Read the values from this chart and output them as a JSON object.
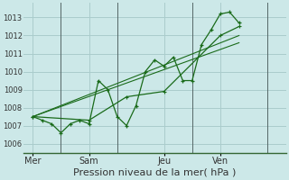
{
  "bg_color": "#cce8e8",
  "grid_color": "#aacccc",
  "line_color": "#1a6b1a",
  "marker_color": "#1a6b1a",
  "xlabel": "Pression niveau de la mer( hPa )",
  "xlabel_fontsize": 8,
  "ylim": [
    1005.5,
    1013.8
  ],
  "yticks": [
    1006,
    1007,
    1008,
    1009,
    1010,
    1011,
    1012,
    1013
  ],
  "ytick_fontsize": 6,
  "day_labels": [
    "Mer",
    "Sam",
    "Jeu",
    "Ven"
  ],
  "day_positions": [
    0.5,
    3.5,
    7.5,
    10.5
  ],
  "vline_positions": [
    2,
    5,
    9,
    13
  ],
  "vline_color": "#556666",
  "xlim": [
    0,
    14
  ],
  "series1_x": [
    0.5,
    1.0,
    1.5,
    2.0,
    2.5,
    3.0,
    3.5,
    4.0,
    4.5,
    5.0,
    5.5,
    6.0,
    6.5,
    7.0,
    7.5,
    8.0,
    8.5,
    9.0,
    9.5,
    10.0,
    10.5,
    11.0,
    11.5
  ],
  "series1_y": [
    1007.5,
    1007.3,
    1007.1,
    1006.6,
    1007.1,
    1007.3,
    1007.1,
    1009.5,
    1009.0,
    1007.5,
    1007.0,
    1008.1,
    1010.0,
    1010.65,
    1010.3,
    1010.8,
    1009.5,
    1009.5,
    1011.5,
    1012.3,
    1013.2,
    1013.3,
    1012.7
  ],
  "series2_x": [
    0.5,
    3.5,
    5.5,
    7.5,
    10.5,
    11.5
  ],
  "series2_y": [
    1007.5,
    1007.3,
    1008.6,
    1008.9,
    1012.0,
    1012.5
  ],
  "series3_x": [
    0.5,
    11.5
  ],
  "series3_y": [
    1007.5,
    1012.0
  ],
  "series4_x": [
    0.5,
    11.5
  ],
  "series4_y": [
    1007.5,
    1011.6
  ]
}
